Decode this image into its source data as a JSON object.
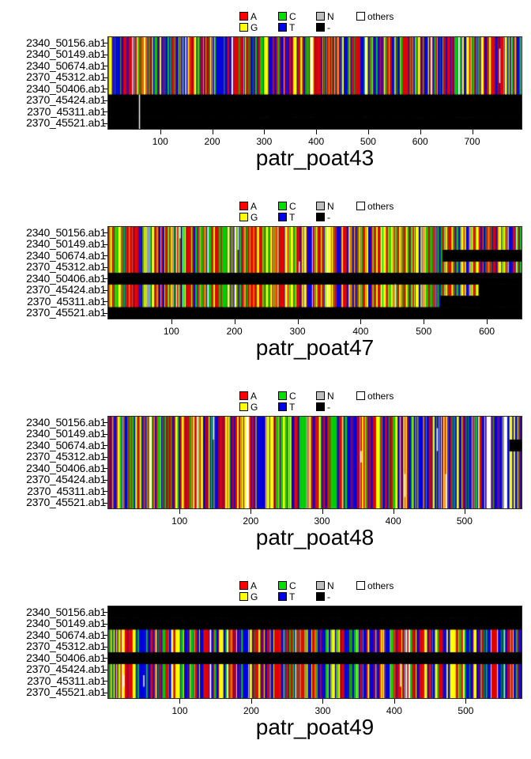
{
  "row_labels": [
    "2340_50156.ab1",
    "2340_50149.ab1",
    "2340_50674.ab1",
    "2370_45312.ab1",
    "2340_50406.ab1",
    "2370_45424.ab1",
    "2370_45311.ab1",
    "2370_45521.ab1"
  ],
  "legend": {
    "row1": [
      {
        "label": "A",
        "color": "#ff0000"
      },
      {
        "label": "C",
        "color": "#00e000"
      },
      {
        "label": "N",
        "color": "#bebebe"
      },
      {
        "label": "others",
        "color": "#ffffff"
      }
    ],
    "row2": [
      {
        "label": "G",
        "color": "#ffff00"
      },
      {
        "label": "T",
        "color": "#0000f0"
      },
      {
        "label": "-",
        "color": "#000000"
      }
    ]
  },
  "chart_data": [
    {
      "type": "heatmap",
      "title": "patr_poat43",
      "length": 795,
      "ticks": [
        100,
        200,
        300,
        400,
        500,
        600,
        700
      ],
      "seed": 1043,
      "repeat_prob": 0.45,
      "palette": [
        {
          "base": "A",
          "color": "#e00000",
          "weight": 0.27
        },
        {
          "base": "T",
          "color": "#0000dd",
          "weight": 0.31
        },
        {
          "base": "C",
          "color": "#00cc00",
          "weight": 0.16
        },
        {
          "base": "G",
          "color": "#ffff00",
          "weight": 0.13
        },
        {
          "base": "others",
          "color": "#ffffff",
          "weight": 0.015
        }
      ],
      "black_segments": [
        {
          "row": 6,
          "from": 0,
          "to": 795
        },
        {
          "row": 7,
          "from": 0,
          "to": 795
        },
        {
          "row": 8,
          "from": 0,
          "to": 795
        }
      ],
      "white_marks": [
        {
          "pos": 59,
          "row_from": 6,
          "row_to": 8
        },
        {
          "pos": 46,
          "row_from": 1,
          "row_to": 5
        },
        {
          "pos": 148,
          "row_from": 1,
          "row_to": 5
        },
        {
          "pos": 752,
          "row_from": 2,
          "row_to": 4
        }
      ]
    },
    {
      "type": "heatmap",
      "title": "patr_poat47",
      "length": 655,
      "ticks": [
        100,
        200,
        300,
        400,
        500,
        600
      ],
      "seed": 2047,
      "repeat_prob": 0.3,
      "palette": [
        {
          "base": "A",
          "color": "#e00000",
          "weight": 0.27
        },
        {
          "base": "C",
          "color": "#00cc00",
          "weight": 0.25
        },
        {
          "base": "G",
          "color": "#ffff00",
          "weight": 0.25
        },
        {
          "base": "T",
          "color": "#0000dd",
          "weight": 0.14
        },
        {
          "base": "others",
          "color": "#ffffff",
          "weight": 0.015
        }
      ],
      "black_segments": [
        {
          "row": 3,
          "from": 530,
          "to": 655
        },
        {
          "row": 5,
          "from": 0,
          "to": 655
        },
        {
          "row": 6,
          "from": 587,
          "to": 655
        },
        {
          "row": 7,
          "from": 526,
          "to": 655
        },
        {
          "row": 8,
          "from": 0,
          "to": 655
        }
      ],
      "white_marks": [
        {
          "pos": 205,
          "row_from": 1,
          "row_to": 2
        },
        {
          "pos": 113,
          "row_from": 1,
          "row_to": 1
        },
        {
          "pos": 454,
          "row_from": 6,
          "row_to": 7
        },
        {
          "pos": 302,
          "row_from": 4,
          "row_to": 4
        }
      ]
    },
    {
      "type": "heatmap",
      "title": "patr_poat48",
      "length": 580,
      "ticks": [
        100,
        200,
        300,
        400,
        500
      ],
      "seed": 3048,
      "repeat_prob": 0.32,
      "palette": [
        {
          "base": "A",
          "color": "#e00000",
          "weight": 0.3
        },
        {
          "base": "T",
          "color": "#0000dd",
          "weight": 0.3
        },
        {
          "base": "G",
          "color": "#ffff00",
          "weight": 0.16
        },
        {
          "base": "C",
          "color": "#00cc00",
          "weight": 0.13
        },
        {
          "base": "others",
          "color": "#ffffff",
          "weight": 0.02
        }
      ],
      "black_segments": [
        {
          "row": 3,
          "from": 563,
          "to": 580
        }
      ],
      "white_marks": [
        {
          "pos": 147,
          "row_from": 1,
          "row_to": 2
        },
        {
          "pos": 354,
          "row_from": 4,
          "row_to": 4
        },
        {
          "pos": 415,
          "row_from": 6,
          "row_to": 7
        },
        {
          "pos": 461,
          "row_from": 2,
          "row_to": 3
        },
        {
          "pos": 473,
          "row_from": 6,
          "row_to": 8
        }
      ]
    },
    {
      "type": "heatmap",
      "title": "patr_poat49",
      "length": 578,
      "ticks": [
        100,
        200,
        300,
        400,
        500
      ],
      "seed": 4049,
      "repeat_prob": 0.34,
      "palette": [
        {
          "base": "A",
          "color": "#e00000",
          "weight": 0.3
        },
        {
          "base": "T",
          "color": "#0000dd",
          "weight": 0.32
        },
        {
          "base": "G",
          "color": "#ffff00",
          "weight": 0.15
        },
        {
          "base": "C",
          "color": "#00cc00",
          "weight": 0.11
        },
        {
          "base": "others",
          "color": "#ffffff",
          "weight": 0.015
        }
      ],
      "black_segments": [
        {
          "row": 1,
          "from": 0,
          "to": 578
        },
        {
          "row": 2,
          "from": 0,
          "to": 578
        },
        {
          "row": 5,
          "from": 0,
          "to": 578
        }
      ],
      "white_marks": [
        {
          "pos": 21,
          "row_from": 7,
          "row_to": 7
        },
        {
          "pos": 49,
          "row_from": 7,
          "row_to": 7
        },
        {
          "pos": 408,
          "row_from": 6,
          "row_to": 7
        }
      ]
    }
  ]
}
